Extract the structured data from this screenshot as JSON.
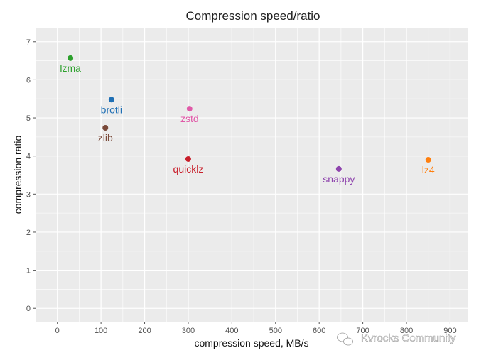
{
  "chart_data": {
    "type": "scatter",
    "title": "Compression speed/ratio",
    "xlabel": "compression speed, MB/s",
    "ylabel": "compression ratio",
    "xlim": [
      -50,
      940
    ],
    "ylim": [
      -0.35,
      7.35
    ],
    "xticks": [
      0,
      100,
      200,
      300,
      400,
      500,
      600,
      700,
      800,
      900
    ],
    "yticks": [
      0,
      1,
      2,
      3,
      4,
      5,
      6,
      7
    ],
    "grid": true,
    "points": [
      {
        "name": "lzma",
        "x": 30,
        "y": 6.57,
        "color": "#2ca02c"
      },
      {
        "name": "brotli",
        "x": 124,
        "y": 5.48,
        "color": "#1f6fb4"
      },
      {
        "name": "zstd",
        "x": 303,
        "y": 5.24,
        "color": "#e05aa8"
      },
      {
        "name": "zlib",
        "x": 110,
        "y": 4.74,
        "color": "#7a4a3a"
      },
      {
        "name": "quicklz",
        "x": 300,
        "y": 3.92,
        "color": "#c81e2a"
      },
      {
        "name": "lz4",
        "x": 850,
        "y": 3.9,
        "color": "#ff7f0e"
      },
      {
        "name": "snappy",
        "x": 645,
        "y": 3.66,
        "color": "#8e44ad"
      }
    ]
  },
  "watermark": {
    "text": "Kvrocks Community",
    "icon": "wechat-icon"
  },
  "colors": {
    "panel": "#ebebeb",
    "grid": "#ffffff"
  }
}
